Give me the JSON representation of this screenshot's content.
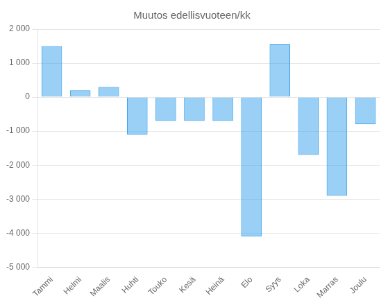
{
  "chart_data": {
    "type": "bar",
    "title": "Muutos edellisvuoteen/kk",
    "categories": [
      "Tammi",
      "Helmi",
      "Maalis",
      "Huhti",
      "Touko",
      "Kesä",
      "Heinä",
      "Elo",
      "Syys",
      "Loka",
      "Marras",
      "Joulu"
    ],
    "values": [
      1500,
      200,
      300,
      -1100,
      -700,
      -700,
      -700,
      -4100,
      1550,
      -1700,
      -2900,
      -800
    ],
    "ylim": [
      -5000,
      2000
    ],
    "yticks": [
      {
        "value": -5000,
        "label": "-5 000"
      },
      {
        "value": -4000,
        "label": "-4 000"
      },
      {
        "value": -3000,
        "label": "-3 000"
      },
      {
        "value": -2000,
        "label": "-2 000"
      },
      {
        "value": -1000,
        "label": "-1 000"
      },
      0,
      {
        "value": 1000,
        "label": "1 000"
      },
      {
        "value": 2000,
        "label": "2 000"
      }
    ],
    "grid": true
  }
}
